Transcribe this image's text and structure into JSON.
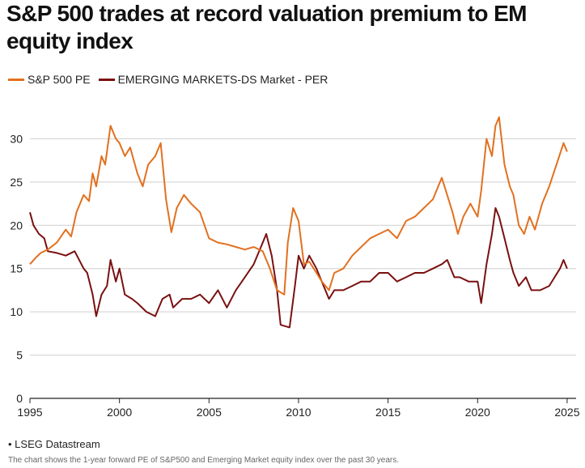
{
  "title": "S&P 500 trades at record valuation premium to EM equity index",
  "source": "• LSEG Datastream",
  "note": "The chart shows the 1-year forward PE of S&P500 and Emerging Market equity index over the past 30 years.",
  "colors": {
    "sp500": "#e2701f",
    "em": "#7a1010",
    "grid": "#cfcfcf",
    "axis": "#222222"
  },
  "chart_data": {
    "type": "line",
    "xlim": [
      1995,
      2025.5
    ],
    "ylim": [
      0,
      32
    ],
    "yticks": [
      0,
      5,
      10,
      15,
      20,
      25,
      30
    ],
    "xticks": [
      1995,
      2000,
      2005,
      2010,
      2015,
      2020,
      2025
    ],
    "grid": true,
    "legend_position": "top-left",
    "series": [
      {
        "name": "S&P 500 PE",
        "color": "#e2701f",
        "x": [
          1995,
          1995.3,
          1995.6,
          1996,
          1996.5,
          1997,
          1997.3,
          1997.6,
          1998,
          1998.3,
          1998.5,
          1998.7,
          1999,
          1999.2,
          1999.5,
          1999.8,
          2000,
          2000.3,
          2000.6,
          2001,
          2001.3,
          2001.6,
          2002,
          2002.3,
          2002.6,
          2002.9,
          2003.2,
          2003.6,
          2004,
          2004.5,
          2005,
          2005.5,
          2006,
          2006.5,
          2007,
          2007.5,
          2008,
          2008.4,
          2008.8,
          2009.2,
          2009.4,
          2009.7,
          2010,
          2010.3,
          2010.6,
          2011,
          2011.3,
          2011.7,
          2012,
          2012.5,
          2013,
          2013.5,
          2014,
          2014.5,
          2015,
          2015.5,
          2016,
          2016.5,
          2017,
          2017.5,
          2018,
          2018.3,
          2018.6,
          2018.9,
          2019.2,
          2019.6,
          2020,
          2020.2,
          2020.5,
          2020.8,
          2021,
          2021.2,
          2021.5,
          2021.8,
          2022,
          2022.3,
          2022.6,
          2022.9,
          2023.2,
          2023.6,
          2024,
          2024.4,
          2024.8,
          2025
        ],
        "values": [
          15.5,
          16.2,
          16.8,
          17.2,
          18,
          19.5,
          18.7,
          21.5,
          23.5,
          22.8,
          26,
          24.5,
          28,
          27,
          31.5,
          30,
          29.5,
          28,
          29,
          26,
          24.5,
          27,
          28,
          29.5,
          23,
          19.2,
          22,
          23.5,
          22.5,
          21.5,
          18.5,
          18,
          17.8,
          17.5,
          17.2,
          17.5,
          17,
          15,
          12.5,
          12,
          18,
          22,
          20.5,
          15.5,
          15.8,
          14.5,
          13.5,
          12.5,
          14.5,
          15,
          16.5,
          17.5,
          18.5,
          19,
          19.5,
          18.5,
          20.5,
          21,
          22,
          23,
          25.5,
          23.5,
          21.5,
          19,
          21,
          22.5,
          21,
          24,
          30,
          28,
          31.5,
          32.5,
          27,
          24.5,
          23.5,
          20,
          19,
          21,
          19.5,
          22.5,
          24.5,
          27,
          29.5,
          28.5
        ]
      },
      {
        "name": "EMERGING MARKETS-DS Market - PER",
        "color": "#7a1010",
        "x": [
          1995,
          1995.2,
          1995.5,
          1995.8,
          1996,
          1996.5,
          1997,
          1997.5,
          1998,
          1998.2,
          1998.5,
          1998.7,
          1999,
          1999.3,
          1999.5,
          1999.8,
          2000,
          2000.3,
          2000.7,
          2001,
          2001.5,
          2002,
          2002.4,
          2002.8,
          2003,
          2003.5,
          2004,
          2004.5,
          2005,
          2005.5,
          2006,
          2006.5,
          2007,
          2007.5,
          2007.9,
          2008.2,
          2008.5,
          2008.8,
          2009,
          2009.5,
          2009.8,
          2010,
          2010.3,
          2010.6,
          2011,
          2011.3,
          2011.7,
          2012,
          2012.5,
          2013,
          2013.5,
          2014,
          2014.5,
          2015,
          2015.5,
          2016,
          2016.5,
          2017,
          2017.5,
          2018,
          2018.3,
          2018.7,
          2019,
          2019.5,
          2020,
          2020.2,
          2020.5,
          2020.8,
          2021,
          2021.2,
          2021.5,
          2021.8,
          2022,
          2022.3,
          2022.7,
          2023,
          2023.5,
          2024,
          2024.3,
          2024.6,
          2024.8,
          2025
        ],
        "values": [
          21.5,
          20,
          19,
          18.5,
          17,
          16.8,
          16.5,
          17,
          15,
          14.5,
          12,
          9.5,
          12,
          13,
          16,
          13.5,
          15,
          12,
          11.5,
          11,
          10,
          9.5,
          11.5,
          12,
          10.5,
          11.5,
          11.5,
          12,
          11,
          12.5,
          10.5,
          12.5,
          14,
          15.5,
          17.5,
          19,
          16.5,
          12.5,
          8.5,
          8.2,
          13,
          16.5,
          15,
          16.5,
          15,
          13.5,
          11.5,
          12.5,
          12.5,
          13,
          13.5,
          13.5,
          14.5,
          14.5,
          13.5,
          14,
          14.5,
          14.5,
          15,
          15.5,
          16,
          14,
          14,
          13.5,
          13.5,
          11,
          15.5,
          19,
          22,
          21,
          18.5,
          16,
          14.5,
          13,
          14,
          12.5,
          12.5,
          13,
          14,
          15,
          16,
          15
        ]
      }
    ]
  }
}
